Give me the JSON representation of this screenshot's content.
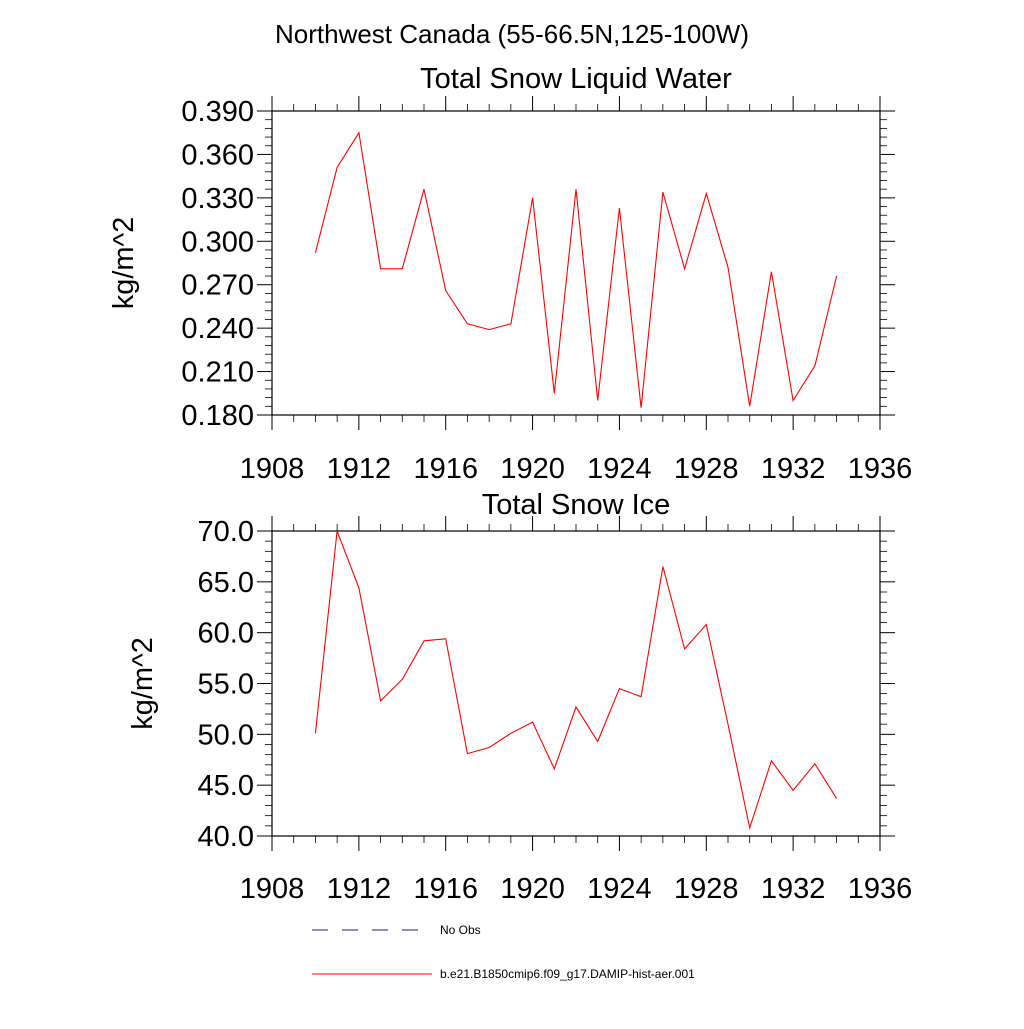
{
  "suptitle": "Northwest Canada (55-66.5N,125-100W)",
  "colors": {
    "model": "#ff0000",
    "obs": "#1c1c7a",
    "axis": "#000000"
  },
  "legend": [
    {
      "label": "No Obs",
      "style": "dashed",
      "color": "#1c1c7a"
    },
    {
      "label": "b.e21.B1850cmip6.f09_g17.DAMIP-hist-aer.001",
      "style": "solid",
      "color": "#ff0000"
    }
  ],
  "chart_data": [
    {
      "type": "line",
      "title": "Total Snow Liquid Water",
      "ylabel": "kg/m^2",
      "xlabel": "",
      "xlim": [
        1908,
        1936
      ],
      "ylim": [
        0.18,
        0.39
      ],
      "xticks": [
        1908,
        1912,
        1916,
        1920,
        1924,
        1928,
        1932,
        1936
      ],
      "xtick_labels": [
        "1908",
        "1912",
        "1916",
        "1920",
        "1924",
        "1928",
        "1932",
        "1936"
      ],
      "yticks": [
        0.18,
        0.21,
        0.24,
        0.27,
        0.3,
        0.33,
        0.36,
        0.39
      ],
      "ytick_labels": [
        "0.180",
        "0.210",
        "0.240",
        "0.270",
        "0.300",
        "0.330",
        "0.360",
        "0.390"
      ],
      "series": [
        {
          "name": "b.e21.B1850cmip6.f09_g17.DAMIP-hist-aer.001",
          "color": "#ff0000",
          "x": [
            1910,
            1911,
            1912,
            1913,
            1914,
            1915,
            1916,
            1917,
            1918,
            1919,
            1920,
            1921,
            1922,
            1923,
            1924,
            1925,
            1926,
            1927,
            1928,
            1929,
            1930,
            1931,
            1932,
            1933,
            1934
          ],
          "y": [
            0.292,
            0.351,
            0.375,
            0.281,
            0.281,
            0.336,
            0.266,
            0.243,
            0.239,
            0.243,
            0.33,
            0.195,
            0.336,
            0.19,
            0.323,
            0.185,
            0.334,
            0.281,
            0.333,
            0.282,
            0.186,
            0.279,
            0.19,
            0.214,
            0.276
          ]
        }
      ]
    },
    {
      "type": "line",
      "title": "Total Snow Ice",
      "ylabel": "kg/m^2",
      "xlabel": "",
      "xlim": [
        1908,
        1936
      ],
      "ylim": [
        40.0,
        70.0
      ],
      "xticks": [
        1908,
        1912,
        1916,
        1920,
        1924,
        1928,
        1932,
        1936
      ],
      "xtick_labels": [
        "1908",
        "1912",
        "1916",
        "1920",
        "1924",
        "1928",
        "1932",
        "1936"
      ],
      "yticks": [
        40,
        45,
        50,
        55,
        60,
        65,
        70
      ],
      "ytick_labels": [
        "40.0",
        "45.0",
        "50.0",
        "55.0",
        "60.0",
        "65.0",
        "70.0"
      ],
      "series": [
        {
          "name": "b.e21.B1850cmip6.f09_g17.DAMIP-hist-aer.001",
          "color": "#ff0000",
          "x": [
            1910,
            1911,
            1912,
            1913,
            1914,
            1915,
            1916,
            1917,
            1918,
            1919,
            1920,
            1921,
            1922,
            1923,
            1924,
            1925,
            1926,
            1927,
            1928,
            1929,
            1930,
            1931,
            1932,
            1933,
            1934
          ],
          "y": [
            50.1,
            70.0,
            64.4,
            53.3,
            55.4,
            59.2,
            59.4,
            48.1,
            48.7,
            50.1,
            51.2,
            46.6,
            52.7,
            49.3,
            54.5,
            53.7,
            66.5,
            58.4,
            60.8,
            51.0,
            40.8,
            47.4,
            44.5,
            47.1,
            43.7
          ]
        }
      ]
    }
  ]
}
